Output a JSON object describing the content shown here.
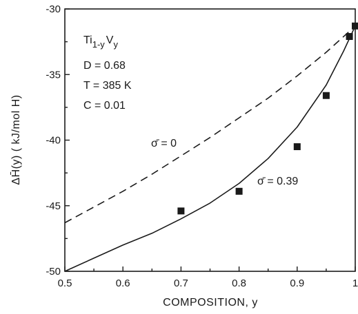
{
  "chart_data": {
    "type": "scatter",
    "title": "",
    "xlabel": "COMPOSITION, y",
    "ylabel": "ΔH̄(y) ( kJ/mol H)",
    "xlim": [
      0.5,
      1.0
    ],
    "ylim": [
      -50,
      -30
    ],
    "x_ticks": [
      "0.5",
      "0.6",
      "0.7",
      "0.8",
      "0.9",
      "1"
    ],
    "y_ticks": [
      "-30",
      "-35",
      "-40",
      "-45",
      "-50"
    ],
    "grid": false,
    "annotations": {
      "alloy_base": "Ti",
      "alloy_sub1": "1-y",
      "alloy_el2": "V",
      "alloy_sub2": "y",
      "D": "D = 0.68",
      "T": "T = 385 K",
      "C": "C = 0.01"
    },
    "series": [
      {
        "label": "σ̄ = 0",
        "style": "dashed",
        "x": [
          0.5,
          0.55,
          0.6,
          0.65,
          0.7,
          0.75,
          0.8,
          0.85,
          0.9,
          0.95,
          1.0
        ],
        "y": [
          -46.3,
          -45.1,
          -43.9,
          -42.6,
          -41.2,
          -39.8,
          -38.3,
          -36.8,
          -35.1,
          -33.3,
          -31.3
        ]
      },
      {
        "label": "σ̄ = 0.39",
        "style": "solid",
        "x": [
          0.5,
          0.55,
          0.6,
          0.65,
          0.7,
          0.75,
          0.8,
          0.85,
          0.9,
          0.95,
          0.98,
          1.0
        ],
        "y": [
          -50.0,
          -49.0,
          -48.0,
          -47.1,
          -46.0,
          -44.8,
          -43.3,
          -41.4,
          -39.0,
          -35.8,
          -33.2,
          -31.3
        ]
      },
      {
        "label": "",
        "style": "markers",
        "x": [
          0.7,
          0.8,
          0.9,
          0.95,
          0.99,
          1.0
        ],
        "y": [
          -45.4,
          -43.9,
          -40.5,
          -36.6,
          -32.1,
          -31.3
        ]
      }
    ]
  },
  "labels": {
    "sigma0": "σ̄ = 0",
    "sigma039": "σ̄ = 0.39"
  }
}
